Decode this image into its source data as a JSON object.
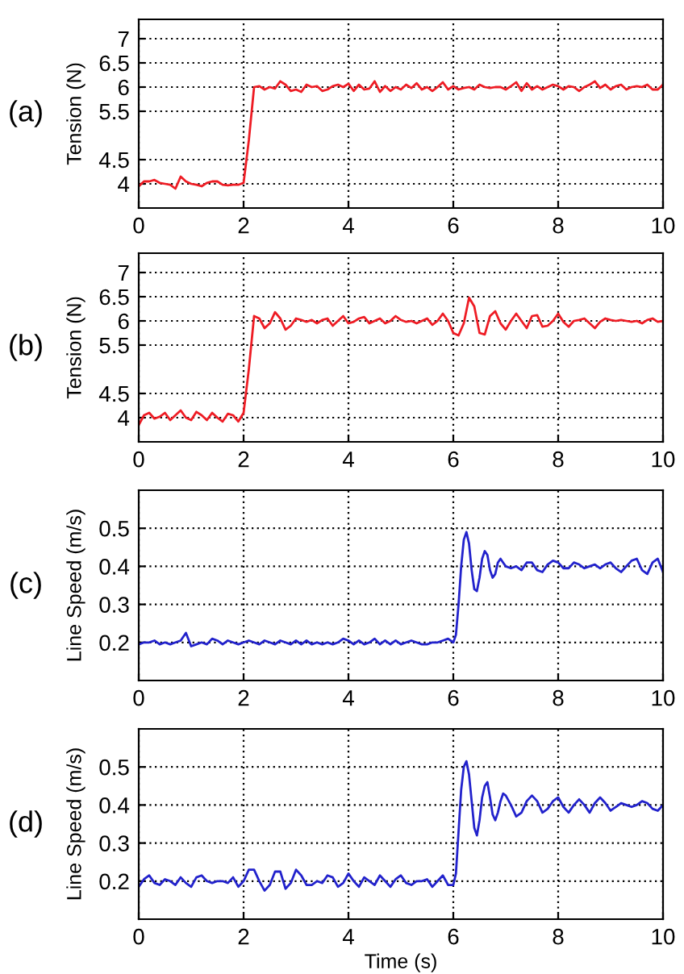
{
  "chart_data": [
    {
      "type": "line",
      "ylabel": "Tension (N)",
      "annotations": [
        "(a)"
      ],
      "grid": true,
      "xlim": [
        0,
        10
      ],
      "xticks": [
        0,
        2,
        4,
        6,
        8,
        10
      ],
      "ylim": [
        3.5,
        7.4
      ],
      "yticks": [
        4,
        4.5,
        5.5,
        6,
        6.5,
        7
      ],
      "x": [
        0,
        0.1,
        0.2,
        0.3,
        0.4,
        0.5,
        0.6,
        0.7,
        0.8,
        0.9,
        1.0,
        1.1,
        1.2,
        1.3,
        1.4,
        1.5,
        1.6,
        1.7,
        1.8,
        1.9,
        2.0,
        2.1,
        2.2,
        2.3,
        2.4,
        2.5,
        2.6,
        2.7,
        2.8,
        2.9,
        3.0,
        3.1,
        3.2,
        3.3,
        3.4,
        3.5,
        3.6,
        3.7,
        3.8,
        3.9,
        4.0,
        4.1,
        4.2,
        4.3,
        4.4,
        4.5,
        4.6,
        4.7,
        4.8,
        4.9,
        5.0,
        5.1,
        5.2,
        5.3,
        5.4,
        5.5,
        5.6,
        5.7,
        5.8,
        5.9,
        6.0,
        6.1,
        6.2,
        6.3,
        6.4,
        6.5,
        6.6,
        6.7,
        6.8,
        6.9,
        7.0,
        7.1,
        7.2,
        7.3,
        7.4,
        7.5,
        7.6,
        7.7,
        7.8,
        7.9,
        8.0,
        8.1,
        8.2,
        8.3,
        8.4,
        8.5,
        8.6,
        8.7,
        8.8,
        8.9,
        9.0,
        9.1,
        9.2,
        9.3,
        9.4,
        9.5,
        9.6,
        9.7,
        9.8,
        9.9,
        10.0
      ],
      "series": [
        {
          "color": "#ee1c24",
          "values": [
            3.95,
            4.05,
            4.05,
            4.08,
            4.02,
            4.0,
            3.98,
            3.9,
            4.15,
            4.05,
            4.0,
            3.98,
            3.95,
            4.02,
            4.05,
            4.05,
            3.98,
            3.97,
            3.98,
            3.98,
            4.02,
            4.9,
            6.0,
            6.02,
            5.95,
            6.0,
            5.97,
            6.12,
            6.05,
            5.92,
            5.95,
            5.9,
            6.05,
            6.0,
            6.02,
            5.92,
            5.95,
            6.02,
            6.05,
            6.0,
            6.07,
            5.92,
            6.05,
            5.95,
            5.97,
            6.12,
            5.9,
            6.02,
            5.92,
            6.0,
            5.95,
            6.05,
            5.98,
            6.08,
            5.95,
            6.0,
            5.92,
            6.0,
            6.1,
            5.95,
            6.02,
            5.95,
            5.98,
            6.0,
            5.95,
            6.05,
            6.0,
            5.98,
            6.0,
            6.0,
            5.95,
            6.02,
            6.1,
            5.92,
            6.08,
            5.95,
            6.02,
            5.95,
            6.0,
            6.05,
            6.02,
            5.95,
            6.02,
            6.0,
            5.92,
            6.0,
            6.05,
            6.12,
            5.98,
            6.05,
            5.95,
            6.02,
            6.05,
            5.95,
            6.0,
            6.02,
            6.0,
            6.05,
            5.95,
            5.95,
            6.05
          ]
        }
      ]
    },
    {
      "type": "line",
      "ylabel": "Tension (N)",
      "annotations": [
        "(b)"
      ],
      "grid": true,
      "xlim": [
        0,
        10
      ],
      "xticks": [
        0,
        2,
        4,
        6,
        8,
        10
      ],
      "ylim": [
        3.5,
        7.4
      ],
      "yticks": [
        4,
        4.5,
        5.5,
        6,
        6.5,
        7
      ],
      "x": [
        0,
        0.1,
        0.2,
        0.3,
        0.4,
        0.5,
        0.6,
        0.7,
        0.8,
        0.9,
        1.0,
        1.1,
        1.2,
        1.3,
        1.4,
        1.5,
        1.6,
        1.7,
        1.8,
        1.9,
        2.0,
        2.1,
        2.2,
        2.3,
        2.4,
        2.5,
        2.6,
        2.7,
        2.8,
        2.9,
        3.0,
        3.1,
        3.2,
        3.3,
        3.4,
        3.5,
        3.6,
        3.7,
        3.8,
        3.9,
        4.0,
        4.1,
        4.2,
        4.3,
        4.4,
        4.5,
        4.6,
        4.7,
        4.8,
        4.9,
        5.0,
        5.1,
        5.2,
        5.3,
        5.4,
        5.5,
        5.6,
        5.7,
        5.8,
        5.9,
        6.0,
        6.1,
        6.2,
        6.3,
        6.4,
        6.5,
        6.6,
        6.7,
        6.8,
        6.9,
        7.0,
        7.1,
        7.2,
        7.3,
        7.4,
        7.5,
        7.6,
        7.7,
        7.8,
        7.9,
        8.0,
        8.1,
        8.2,
        8.3,
        8.4,
        8.5,
        8.6,
        8.7,
        8.8,
        8.9,
        9.0,
        9.1,
        9.2,
        9.3,
        9.4,
        9.5,
        9.6,
        9.7,
        9.8,
        9.9,
        10.0
      ],
      "series": [
        {
          "color": "#ee1c24",
          "values": [
            3.85,
            4.05,
            4.1,
            3.98,
            4.02,
            4.1,
            3.95,
            4.05,
            4.15,
            4.0,
            3.95,
            4.12,
            4.05,
            3.95,
            4.1,
            4.0,
            3.92,
            4.08,
            4.05,
            3.92,
            4.1,
            5.0,
            6.1,
            6.05,
            5.85,
            5.95,
            6.18,
            6.05,
            5.82,
            5.9,
            6.05,
            6.02,
            5.98,
            6.02,
            5.95,
            6.02,
            6.05,
            5.9,
            6.0,
            6.1,
            5.95,
            5.98,
            6.05,
            6.08,
            5.95,
            6.0,
            6.05,
            5.95,
            6.0,
            6.1,
            6.02,
            5.98,
            6.0,
            5.95,
            6.0,
            6.05,
            5.92,
            6.0,
            6.15,
            6.0,
            5.75,
            5.7,
            5.95,
            6.48,
            6.3,
            5.75,
            5.72,
            6.1,
            6.2,
            5.95,
            5.82,
            6.0,
            6.15,
            6.0,
            5.85,
            6.1,
            6.12,
            5.88,
            5.9,
            6.0,
            6.15,
            5.98,
            5.88,
            6.0,
            6.02,
            6.05,
            5.95,
            5.85,
            5.98,
            6.05,
            6.02,
            6.0,
            6.02,
            6.0,
            5.98,
            6.0,
            5.95,
            6.02,
            6.05,
            5.98,
            6.0
          ]
        }
      ]
    },
    {
      "type": "line",
      "ylabel": "Line Speed (m/s)",
      "annotations": [
        "(c)"
      ],
      "grid": true,
      "xlim": [
        0,
        10
      ],
      "xticks": [
        0,
        2,
        4,
        6,
        8,
        10
      ],
      "ylim": [
        0.1,
        0.6
      ],
      "yticks": [
        0.2,
        0.3,
        0.4,
        0.5
      ],
      "x": [
        0,
        0.1,
        0.2,
        0.3,
        0.4,
        0.5,
        0.6,
        0.7,
        0.8,
        0.9,
        1.0,
        1.1,
        1.2,
        1.3,
        1.4,
        1.5,
        1.6,
        1.7,
        1.8,
        1.9,
        2.0,
        2.1,
        2.2,
        2.3,
        2.4,
        2.5,
        2.6,
        2.7,
        2.8,
        2.9,
        3.0,
        3.1,
        3.2,
        3.3,
        3.4,
        3.5,
        3.6,
        3.7,
        3.8,
        3.9,
        4.0,
        4.1,
        4.2,
        4.3,
        4.4,
        4.5,
        4.6,
        4.7,
        4.8,
        4.9,
        5.0,
        5.1,
        5.2,
        5.3,
        5.4,
        5.5,
        5.6,
        5.7,
        5.8,
        5.9,
        6.0,
        6.05,
        6.1,
        6.15,
        6.2,
        6.25,
        6.3,
        6.35,
        6.4,
        6.45,
        6.5,
        6.55,
        6.6,
        6.65,
        6.7,
        6.75,
        6.8,
        6.85,
        6.9,
        6.95,
        7.0,
        7.1,
        7.2,
        7.3,
        7.4,
        7.5,
        7.6,
        7.7,
        7.8,
        7.9,
        8.0,
        8.1,
        8.2,
        8.3,
        8.4,
        8.5,
        8.6,
        8.7,
        8.8,
        8.9,
        9.0,
        9.1,
        9.2,
        9.3,
        9.4,
        9.5,
        9.6,
        9.7,
        9.8,
        9.9,
        10.0
      ],
      "series": [
        {
          "color": "#2222cc",
          "values": [
            0.195,
            0.2,
            0.2,
            0.205,
            0.195,
            0.2,
            0.195,
            0.2,
            0.205,
            0.225,
            0.19,
            0.195,
            0.2,
            0.195,
            0.21,
            0.205,
            0.195,
            0.205,
            0.2,
            0.195,
            0.2,
            0.205,
            0.2,
            0.195,
            0.205,
            0.2,
            0.195,
            0.205,
            0.2,
            0.195,
            0.205,
            0.195,
            0.205,
            0.195,
            0.2,
            0.195,
            0.2,
            0.195,
            0.2,
            0.21,
            0.205,
            0.195,
            0.205,
            0.195,
            0.2,
            0.21,
            0.195,
            0.205,
            0.195,
            0.205,
            0.195,
            0.2,
            0.205,
            0.2,
            0.195,
            0.195,
            0.2,
            0.2,
            0.205,
            0.21,
            0.2,
            0.22,
            0.3,
            0.4,
            0.47,
            0.49,
            0.46,
            0.39,
            0.34,
            0.335,
            0.37,
            0.42,
            0.44,
            0.43,
            0.39,
            0.37,
            0.38,
            0.41,
            0.42,
            0.41,
            0.4,
            0.395,
            0.4,
            0.39,
            0.41,
            0.41,
            0.39,
            0.385,
            0.405,
            0.415,
            0.41,
            0.395,
            0.395,
            0.41,
            0.405,
            0.395,
            0.4,
            0.405,
            0.395,
            0.405,
            0.41,
            0.395,
            0.385,
            0.4,
            0.415,
            0.42,
            0.39,
            0.38,
            0.41,
            0.42,
            0.385
          ]
        }
      ]
    },
    {
      "type": "line",
      "ylabel": "Line Speed (m/s)",
      "xlabel": "Time (s)",
      "annotations": [
        "(d)"
      ],
      "grid": true,
      "xlim": [
        0,
        10
      ],
      "xticks": [
        0,
        2,
        4,
        6,
        8,
        10
      ],
      "ylim": [
        0.1,
        0.6
      ],
      "yticks": [
        0.2,
        0.3,
        0.4,
        0.5
      ],
      "x": [
        0,
        0.1,
        0.2,
        0.3,
        0.4,
        0.5,
        0.6,
        0.7,
        0.8,
        0.9,
        1.0,
        1.1,
        1.2,
        1.3,
        1.4,
        1.5,
        1.6,
        1.7,
        1.8,
        1.9,
        2.0,
        2.1,
        2.2,
        2.3,
        2.4,
        2.5,
        2.6,
        2.7,
        2.8,
        2.9,
        3.0,
        3.1,
        3.2,
        3.3,
        3.4,
        3.5,
        3.6,
        3.7,
        3.8,
        3.9,
        4.0,
        4.1,
        4.2,
        4.3,
        4.4,
        4.5,
        4.6,
        4.7,
        4.8,
        4.9,
        5.0,
        5.1,
        5.2,
        5.3,
        5.4,
        5.5,
        5.6,
        5.7,
        5.8,
        5.9,
        6.0,
        6.05,
        6.1,
        6.15,
        6.2,
        6.25,
        6.3,
        6.35,
        6.4,
        6.45,
        6.5,
        6.55,
        6.6,
        6.65,
        6.7,
        6.75,
        6.8,
        6.85,
        6.9,
        6.95,
        7.0,
        7.1,
        7.2,
        7.3,
        7.4,
        7.5,
        7.6,
        7.7,
        7.8,
        7.9,
        8.0,
        8.1,
        8.2,
        8.3,
        8.4,
        8.5,
        8.6,
        8.7,
        8.8,
        8.9,
        9.0,
        9.1,
        9.2,
        9.3,
        9.4,
        9.5,
        9.6,
        9.7,
        9.8,
        9.9,
        10.0
      ],
      "series": [
        {
          "color": "#2222cc",
          "values": [
            0.185,
            0.205,
            0.215,
            0.195,
            0.19,
            0.205,
            0.2,
            0.19,
            0.21,
            0.195,
            0.185,
            0.21,
            0.215,
            0.2,
            0.195,
            0.2,
            0.2,
            0.195,
            0.21,
            0.185,
            0.2,
            0.23,
            0.23,
            0.2,
            0.175,
            0.19,
            0.225,
            0.225,
            0.18,
            0.195,
            0.23,
            0.215,
            0.19,
            0.19,
            0.2,
            0.195,
            0.215,
            0.21,
            0.185,
            0.195,
            0.22,
            0.2,
            0.185,
            0.21,
            0.2,
            0.19,
            0.215,
            0.2,
            0.185,
            0.205,
            0.215,
            0.195,
            0.19,
            0.2,
            0.2,
            0.205,
            0.185,
            0.2,
            0.215,
            0.19,
            0.19,
            0.22,
            0.33,
            0.44,
            0.5,
            0.515,
            0.48,
            0.41,
            0.34,
            0.32,
            0.36,
            0.42,
            0.45,
            0.46,
            0.42,
            0.375,
            0.36,
            0.38,
            0.41,
            0.43,
            0.425,
            0.4,
            0.37,
            0.38,
            0.41,
            0.425,
            0.41,
            0.38,
            0.39,
            0.41,
            0.42,
            0.395,
            0.38,
            0.4,
            0.415,
            0.4,
            0.38,
            0.405,
            0.42,
            0.405,
            0.385,
            0.395,
            0.405,
            0.4,
            0.395,
            0.4,
            0.41,
            0.405,
            0.39,
            0.385,
            0.4
          ]
        }
      ]
    }
  ]
}
